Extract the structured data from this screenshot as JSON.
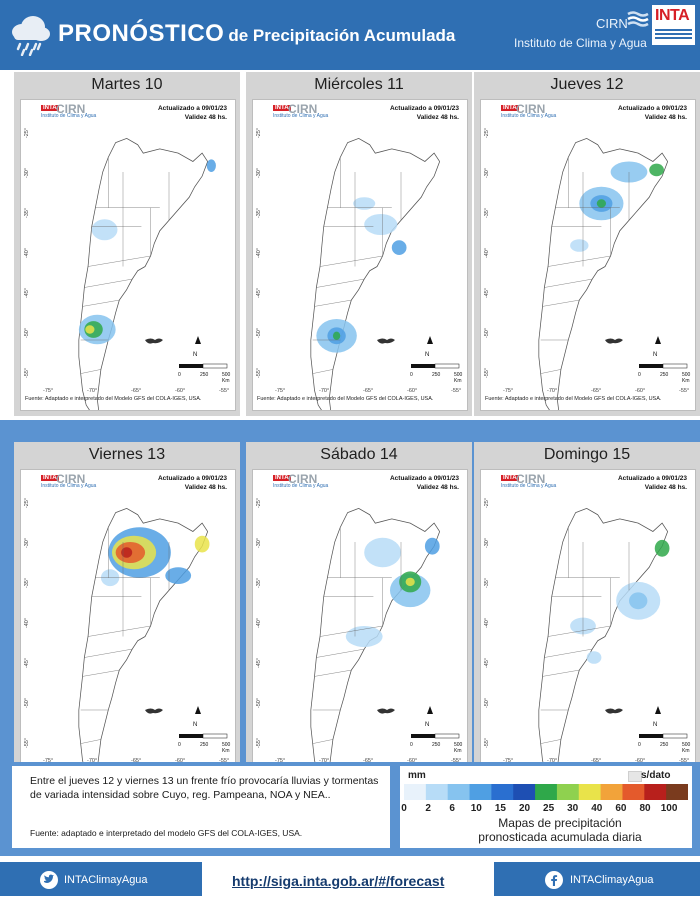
{
  "header": {
    "title_big": "PRONÓSTICO",
    "title_small": "de Precipitación Acumulada",
    "cirn": "CIRN",
    "institute": "Instituto de Clima y Agua",
    "inta_logo": "INTA",
    "icon": "rain-cloud-icon"
  },
  "panels": [
    {
      "day": "Martes 10"
    },
    {
      "day": "Miércoles 11"
    },
    {
      "day": "Jueves 12"
    },
    {
      "day": "Viernes 13"
    },
    {
      "day": "Sábado 14"
    },
    {
      "day": "Domingo 15"
    }
  ],
  "panel_common": {
    "logo_inta": "INTA",
    "logo_cirn": "CIRN",
    "logo_caption": "Instituto de Clima y Agua",
    "updated": "Actualizado a 09/01/23",
    "validity": "Validez 48 hs.",
    "source": "Fuente: Adaptado e interpretado del Modelo GFS del COLA-IGES, USA.",
    "y_ticks": [
      "-25°",
      "-30°",
      "-35°",
      "-40°",
      "-45°",
      "-50°",
      "-55°"
    ],
    "x_ticks": [
      "-75°",
      "-70°",
      "-65°",
      "-60°",
      "-55°"
    ],
    "scale_north": "N",
    "scale_labels": [
      "0",
      "250",
      "500 Km"
    ]
  },
  "description": {
    "text": "Entre el jueves 12 y viernes 13 un frente frío provocaría lluvias y tormentas de variada intensidad sobre Cuyo, reg. Pampeana, NOA y NEA..",
    "source": "Fuente: adaptado e interpretado del modelo GFS del COLA-IGES, USA."
  },
  "legend": {
    "unit": "mm",
    "no_data": "s/dato",
    "labels": [
      "0",
      "2",
      "6",
      "10",
      "15",
      "20",
      "25",
      "30",
      "40",
      "60",
      "80",
      "100"
    ],
    "colors": [
      "#e8f2fb",
      "#b7dcf7",
      "#86c3ef",
      "#4f9fe3",
      "#2a6fd0",
      "#1e4fb3",
      "#2fa84a",
      "#8fd14f",
      "#e9e34a",
      "#f2a33a",
      "#e45a2c",
      "#b8201c",
      "#7a3b1e"
    ],
    "caption_1": "Mapas de precipitación",
    "caption_2": "pronosticada acumulada diaria"
  },
  "footer": {
    "twitter": "INTAClimayAgua",
    "facebook": "INTAClimayAgua",
    "url": "http://siga.inta.gob.ar/#/forecast"
  }
}
